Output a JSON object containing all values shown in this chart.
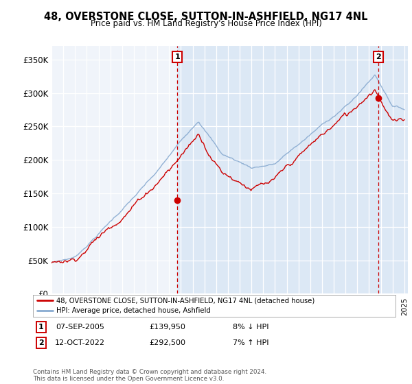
{
  "title": "48, OVERSTONE CLOSE, SUTTON-IN-ASHFIELD, NG17 4NL",
  "subtitle": "Price paid vs. HM Land Registry's House Price Index (HPI)",
  "yticks": [
    0,
    50000,
    100000,
    150000,
    200000,
    250000,
    300000,
    350000
  ],
  "ytick_labels": [
    "£0",
    "£50K",
    "£100K",
    "£150K",
    "£200K",
    "£250K",
    "£300K",
    "£350K"
  ],
  "xlim_start": 1995.0,
  "xlim_end": 2025.3,
  "ylim_min": 0,
  "ylim_max": 370000,
  "plot_bg_color": "#f0f4fa",
  "shade_bg_color": "#dce8f5",
  "legend_label_red": "48, OVERSTONE CLOSE, SUTTON-IN-ASHFIELD, NG17 4NL (detached house)",
  "legend_label_blue": "HPI: Average price, detached house, Ashfield",
  "marker1_x": 2005.69,
  "marker1_y": 139950,
  "marker1_label": "1",
  "marker1_date": "07-SEP-2005",
  "marker1_price": "£139,950",
  "marker1_hpi": "8% ↓ HPI",
  "marker2_x": 2022.79,
  "marker2_y": 292500,
  "marker2_label": "2",
  "marker2_date": "12-OCT-2022",
  "marker2_price": "£292,500",
  "marker2_hpi": "7% ↑ HPI",
  "footer": "Contains HM Land Registry data © Crown copyright and database right 2024.\nThis data is licensed under the Open Government Licence v3.0.",
  "red_color": "#cc0000",
  "blue_color": "#88aad0"
}
